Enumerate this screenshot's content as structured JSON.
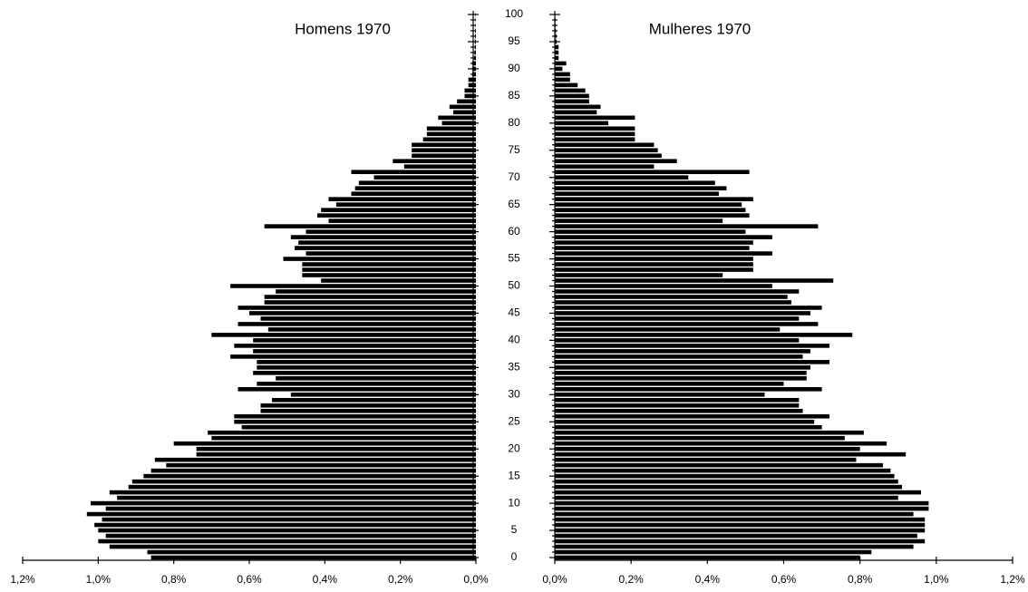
{
  "chart_data": {
    "type": "pyramid",
    "categories": [
      0,
      null,
      null,
      null,
      null,
      5,
      null,
      null,
      null,
      null,
      10,
      null,
      null,
      null,
      null,
      15,
      null,
      null,
      null,
      null,
      20,
      null,
      null,
      null,
      null,
      25,
      null,
      null,
      null,
      null,
      30,
      null,
      null,
      null,
      null,
      35,
      null,
      null,
      null,
      null,
      40,
      null,
      null,
      null,
      null,
      45,
      null,
      null,
      null,
      null,
      50,
      null,
      null,
      null,
      null,
      55,
      null,
      null,
      null,
      null,
      60,
      null,
      null,
      null,
      null,
      65,
      null,
      null,
      null,
      null,
      70,
      null,
      null,
      null,
      null,
      75,
      null,
      null,
      null,
      null,
      80,
      null,
      null,
      null,
      null,
      85,
      null,
      null,
      null,
      null,
      90,
      null,
      null,
      null,
      null,
      95,
      null,
      null,
      null,
      null,
      100
    ],
    "series": [
      {
        "name": "Homens 1970",
        "color": "#000000",
        "side": "left",
        "values": [
          0.86,
          0.87,
          0.97,
          1.0,
          0.98,
          1.0,
          1.01,
          0.99,
          1.03,
          0.98,
          1.02,
          0.95,
          0.97,
          0.92,
          0.91,
          0.88,
          0.86,
          0.82,
          0.85,
          0.74,
          0.74,
          0.8,
          0.7,
          0.71,
          0.62,
          0.64,
          0.64,
          0.57,
          0.57,
          0.54,
          0.49,
          0.63,
          0.58,
          0.53,
          0.59,
          0.58,
          0.58,
          0.65,
          0.59,
          0.64,
          0.59,
          0.7,
          0.55,
          0.63,
          0.57,
          0.6,
          0.63,
          0.56,
          0.56,
          0.53,
          0.65,
          0.41,
          0.46,
          0.46,
          0.46,
          0.51,
          0.45,
          0.48,
          0.47,
          0.49,
          0.45,
          0.56,
          0.39,
          0.42,
          0.41,
          0.37,
          0.39,
          0.33,
          0.32,
          0.31,
          0.27,
          0.33,
          0.19,
          0.22,
          0.17,
          0.17,
          0.17,
          0.14,
          0.13,
          0.13,
          0.09,
          0.1,
          0.06,
          0.07,
          0.05,
          0.03,
          0.03,
          0.02,
          0.02,
          0.01,
          0.01,
          0.01,
          0.005,
          0.004,
          0.003,
          0.003,
          0.002,
          0.002,
          0.001,
          0.001,
          0.001
        ]
      },
      {
        "name": "Mulheres 1970",
        "color": "#000000",
        "side": "right",
        "values": [
          0.8,
          0.83,
          0.94,
          0.97,
          0.95,
          0.97,
          0.97,
          0.97,
          0.94,
          0.98,
          0.98,
          0.9,
          0.96,
          0.91,
          0.9,
          0.89,
          0.88,
          0.86,
          0.79,
          0.92,
          0.8,
          0.87,
          0.76,
          0.81,
          0.7,
          0.68,
          0.72,
          0.65,
          0.64,
          0.64,
          0.55,
          0.7,
          0.6,
          0.66,
          0.66,
          0.67,
          0.72,
          0.65,
          0.67,
          0.72,
          0.64,
          0.78,
          0.59,
          0.69,
          0.64,
          0.67,
          0.7,
          0.62,
          0.61,
          0.64,
          0.57,
          0.73,
          0.44,
          0.52,
          0.52,
          0.52,
          0.57,
          0.51,
          0.52,
          0.57,
          0.5,
          0.69,
          0.44,
          0.51,
          0.5,
          0.49,
          0.52,
          0.43,
          0.45,
          0.42,
          0.35,
          0.51,
          0.26,
          0.32,
          0.28,
          0.27,
          0.26,
          0.21,
          0.21,
          0.21,
          0.14,
          0.21,
          0.11,
          0.12,
          0.09,
          0.09,
          0.08,
          0.06,
          0.04,
          0.04,
          0.02,
          0.03,
          0.01,
          0.01,
          0.01,
          0.005,
          0.004,
          0.003,
          0.002,
          0.002,
          0.001
        ]
      }
    ],
    "xlim": [
      0,
      1.2
    ],
    "xticks": [
      {
        "value": 0,
        "label": "0,0%"
      },
      {
        "value": 0.2,
        "label": "0,2%"
      },
      {
        "value": 0.4,
        "label": "0,4%"
      },
      {
        "value": 0.6,
        "label": "0,6%"
      },
      {
        "value": 0.8,
        "label": "0,8%"
      },
      {
        "value": 1.0,
        "label": "1,0%"
      },
      {
        "value": 1.2,
        "label": "1,2%"
      }
    ]
  }
}
